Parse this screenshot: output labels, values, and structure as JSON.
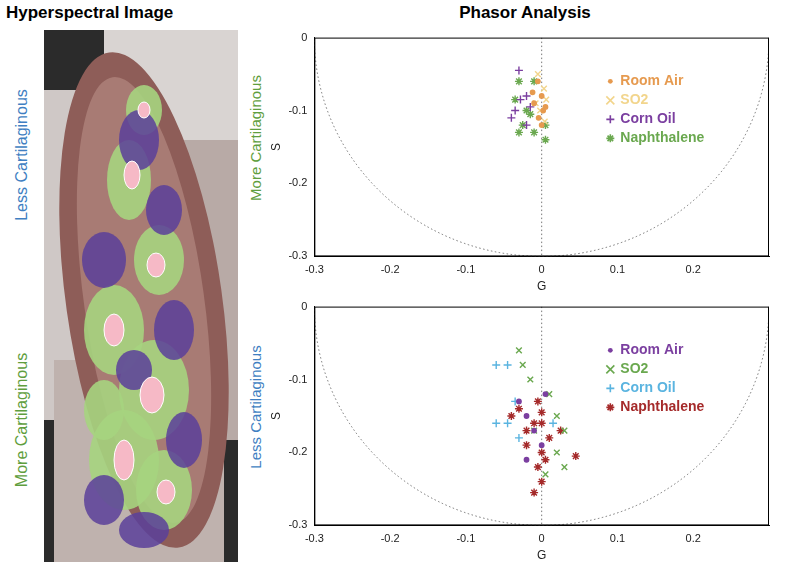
{
  "image_panel": {
    "title": "Hyperspectral Image",
    "labels": [
      "Less Cartilaginous",
      "More Cartilaginous"
    ]
  },
  "heading": "Phasor Analysis",
  "chart_data": [
    {
      "type": "scatter",
      "annotations": [
        "More Cartilaginous"
      ],
      "xlabel": "G",
      "ylabel": "S",
      "xlim": [
        -0.3,
        0.3
      ],
      "xticks": [
        -0.3,
        -0.2,
        -0.1,
        0,
        0.1,
        0.2
      ],
      "ylim": [
        -0.3,
        0
      ],
      "yticks": [
        -0.3,
        -0.2,
        -0.1,
        0
      ],
      "grid": false,
      "legend": "upper right",
      "series": [
        {
          "name": "Room Air",
          "color": "#e69a4f",
          "marker": "point",
          "x": [
            -0.005,
            0.0,
            -0.01,
            0.002,
            -0.004,
            0.005,
            -0.012,
            0.0
          ],
          "values": [
            -0.06,
            -0.08,
            -0.09,
            -0.1,
            -0.11,
            -0.095,
            -0.075,
            -0.12
          ]
        },
        {
          "name": "SO2",
          "color": "#f2d58c",
          "marker": "x",
          "x": [
            -0.005,
            0.003,
            0.006,
            -0.002,
            0.004,
            -0.008
          ],
          "values": [
            -0.05,
            -0.07,
            -0.085,
            -0.1,
            -0.115,
            -0.09
          ]
        },
        {
          "name": "Corn Oil",
          "color": "#7b3fa0",
          "marker": "plus",
          "x": [
            -0.03,
            -0.02,
            -0.028,
            -0.035,
            -0.04,
            -0.015,
            -0.02
          ],
          "values": [
            -0.045,
            -0.08,
            -0.085,
            -0.1,
            -0.11,
            -0.095,
            -0.12
          ]
        },
        {
          "name": "Naphthalene",
          "color": "#6aa84f",
          "marker": "star",
          "x": [
            -0.01,
            -0.03,
            -0.035,
            -0.02,
            -0.025,
            -0.01,
            0.005,
            -0.03,
            0.005,
            -0.015
          ],
          "values": [
            -0.06,
            -0.06,
            -0.085,
            -0.1,
            -0.12,
            -0.13,
            -0.14,
            -0.13,
            -0.12,
            -0.105
          ]
        }
      ]
    },
    {
      "type": "scatter",
      "annotations": [
        "Less Cartilaginous"
      ],
      "xlabel": "G",
      "ylabel": "S",
      "xlim": [
        -0.3,
        0.3
      ],
      "xticks": [
        -0.3,
        -0.2,
        -0.1,
        0,
        0.1,
        0.2
      ],
      "ylim": [
        -0.3,
        0
      ],
      "yticks": [
        -0.3,
        -0.2,
        -0.1,
        0
      ],
      "grid": false,
      "legend": "upper right",
      "series": [
        {
          "name": "Room Air",
          "color": "#7b3fa0",
          "marker": "point",
          "x": [
            -0.03,
            -0.02,
            -0.01,
            0.0,
            -0.02,
            0.005
          ],
          "values": [
            -0.13,
            -0.15,
            -0.17,
            -0.19,
            -0.21,
            -0.12
          ]
        },
        {
          "name": "SO2",
          "color": "#6aa84f",
          "marker": "x",
          "x": [
            -0.03,
            -0.025,
            -0.015,
            0.01,
            0.02,
            0.03,
            0.02,
            0.03,
            0.005,
            -0.01
          ],
          "values": [
            -0.06,
            -0.08,
            -0.1,
            -0.12,
            -0.15,
            -0.17,
            -0.2,
            -0.22,
            -0.23,
            -0.17
          ]
        },
        {
          "name": "Corn Oil",
          "color": "#5ab4e0",
          "marker": "plus",
          "x": [
            -0.06,
            -0.045,
            -0.06,
            -0.045,
            -0.035,
            0.015,
            -0.03
          ],
          "values": [
            -0.08,
            -0.08,
            -0.16,
            -0.16,
            -0.13,
            -0.16,
            -0.18
          ]
        },
        {
          "name": "Naphthalene",
          "color": "#a52a2a",
          "marker": "star",
          "x": [
            -0.005,
            0.0,
            -0.01,
            -0.03,
            -0.04,
            -0.02,
            0.0,
            0.005,
            -0.005,
            0.0,
            -0.01,
            0.01,
            0.045,
            0.025,
            -0.02,
            0.0
          ],
          "values": [
            -0.13,
            -0.145,
            -0.16,
            -0.14,
            -0.15,
            -0.19,
            -0.2,
            -0.21,
            -0.22,
            -0.24,
            -0.255,
            -0.18,
            -0.205,
            -0.17,
            -0.17,
            -0.16
          ]
        }
      ]
    }
  ]
}
